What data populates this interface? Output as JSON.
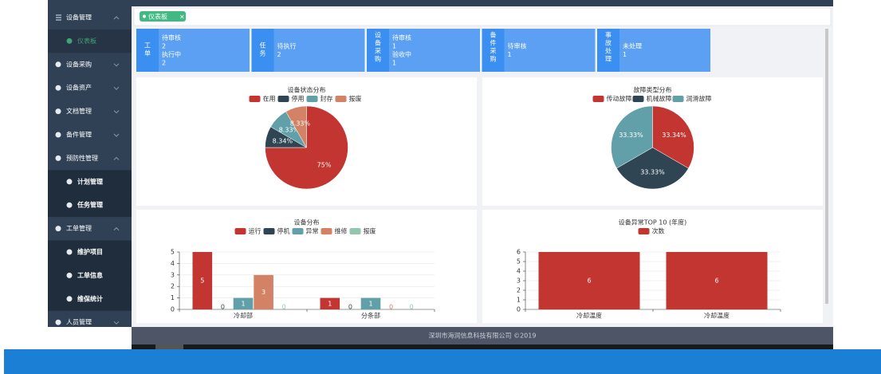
{
  "sidebar": {
    "items": [
      {
        "label": "设备管理",
        "caret": "up"
      },
      {
        "label": "仪表板",
        "sub": true,
        "active": true
      },
      {
        "label": "设备采购",
        "caret": "down"
      },
      {
        "label": "设备资产",
        "caret": "down"
      },
      {
        "label": "文档管理",
        "caret": "down"
      },
      {
        "label": "备件管理",
        "caret": "down"
      },
      {
        "label": "预防性管理",
        "caret": "up"
      },
      {
        "label": "计划管理",
        "sub": true
      },
      {
        "label": "任务管理",
        "sub": true
      },
      {
        "label": "工单管理",
        "caret": "up"
      },
      {
        "label": "维护项目",
        "sub": true
      },
      {
        "label": "工单信息",
        "sub": true
      },
      {
        "label": "维保统计",
        "sub": true
      },
      {
        "label": "人员管理",
        "caret": "down"
      }
    ]
  },
  "tabs": [
    {
      "label": "仪表板"
    }
  ],
  "cards": [
    {
      "label": "工单",
      "items": [
        {
          "label": "待审核",
          "value": 2
        },
        {
          "label": "执行中",
          "value": 2
        }
      ]
    },
    {
      "label": "任务",
      "items": [
        {
          "label": "待执行",
          "value": 2
        }
      ]
    },
    {
      "label": "设备采购",
      "items": [
        {
          "label": "待审核",
          "value": 1
        },
        {
          "label": "验收中",
          "value": 1
        }
      ]
    },
    {
      "label": "备件采购",
      "items": [
        {
          "label": "待审核",
          "value": 1
        }
      ]
    },
    {
      "label": "事故处理",
      "items": [
        {
          "label": "未处理",
          "value": 1
        }
      ]
    }
  ],
  "chart_data": [
    {
      "type": "pie",
      "title": "设备状态分布",
      "categories": [
        "在用",
        "停用",
        "封存",
        "报废"
      ],
      "values": [
        75,
        8.34,
        8.33,
        8.33
      ],
      "value_labels": [
        "75%",
        "8.34%",
        "8.33%",
        "8.33%"
      ],
      "colors": [
        "#c23531",
        "#2f4554",
        "#61a0a8",
        "#d48265"
      ]
    },
    {
      "type": "pie",
      "title": "故障类型分布",
      "categories": [
        "传动故障",
        "机械故障",
        "润滑故障"
      ],
      "values": [
        33.34,
        33.33,
        33.33
      ],
      "value_labels": [
        "33.34%",
        "33.33%",
        "33.33%"
      ],
      "colors": [
        "#c23531",
        "#2f4554",
        "#61a0a8"
      ]
    },
    {
      "type": "bar",
      "title": "设备分布",
      "categories": [
        "冷却部",
        "分条部"
      ],
      "series": [
        {
          "name": "运行",
          "color": "#c23531",
          "values": [
            5,
            1
          ]
        },
        {
          "name": "停机",
          "color": "#2f4554",
          "values": [
            0,
            0
          ]
        },
        {
          "name": "异常",
          "color": "#61a0a8",
          "values": [
            1,
            1
          ]
        },
        {
          "name": "维修",
          "color": "#d48265",
          "values": [
            3,
            0
          ]
        },
        {
          "name": "报废",
          "color": "#91c7ae",
          "values": [
            0,
            0
          ]
        }
      ],
      "ylim": [
        0,
        5
      ],
      "yticks": [
        0,
        1,
        2,
        3,
        4,
        5
      ],
      "grid": true
    },
    {
      "type": "bar",
      "title": "设备异常TOP 10 (年度)",
      "categories": [
        "冷却温度",
        "冷却温度"
      ],
      "series": [
        {
          "name": "次数",
          "color": "#c23531",
          "values": [
            6,
            6
          ]
        }
      ],
      "ylim": [
        0,
        6
      ],
      "yticks": [
        0,
        1,
        2,
        3,
        4,
        5,
        6
      ],
      "grid": true
    }
  ],
  "footer": {
    "text": "深圳市海润信息科技有限公司 ©2019"
  }
}
